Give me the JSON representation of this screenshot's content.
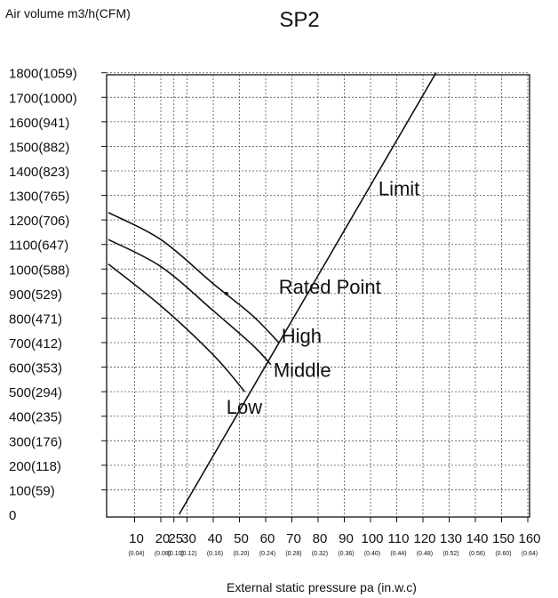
{
  "chart_data": {
    "type": "line",
    "title": "SP2",
    "ylabel": "Air volume m3/h(CFM)",
    "xlabel": "External static pressure pa  (in.w.c)",
    "y_ticks": [
      {
        "value": 0,
        "label": "0"
      },
      {
        "value": 100,
        "label": "100(59)"
      },
      {
        "value": 200,
        "label": "200(118)"
      },
      {
        "value": 300,
        "label": "300(176)"
      },
      {
        "value": 400,
        "label": "400(235)"
      },
      {
        "value": 500,
        "label": "500(294)"
      },
      {
        "value": 600,
        "label": "600(353)"
      },
      {
        "value": 700,
        "label": "700(412)"
      },
      {
        "value": 800,
        "label": "800(471)"
      },
      {
        "value": 900,
        "label": "900(529)"
      },
      {
        "value": 1000,
        "label": "1000(588)"
      },
      {
        "value": 1100,
        "label": "1100(647)"
      },
      {
        "value": 1200,
        "label": "1200(706)"
      },
      {
        "value": 1300,
        "label": "1300(765)"
      },
      {
        "value": 1400,
        "label": "1400(823)"
      },
      {
        "value": 1500,
        "label": "1500(882)"
      },
      {
        "value": 1600,
        "label": "1600(941)"
      },
      {
        "value": 1700,
        "label": "1700(1000)"
      },
      {
        "value": 1800,
        "label": "1800(1059)"
      }
    ],
    "x_ticks": [
      {
        "value": 10,
        "label": "10",
        "sub": "(0.04)"
      },
      {
        "value": 20,
        "label": "20",
        "sub": "(0.08)"
      },
      {
        "value": 25,
        "label": "25",
        "sub": "(0.10)"
      },
      {
        "value": 30,
        "label": "30",
        "sub": "(0.12)"
      },
      {
        "value": 40,
        "label": "40",
        "sub": "(0.16)"
      },
      {
        "value": 50,
        "label": "50",
        "sub": "(0.20)"
      },
      {
        "value": 60,
        "label": "60",
        "sub": "(0.24)"
      },
      {
        "value": 70,
        "label": "70",
        "sub": "(0.28)"
      },
      {
        "value": 80,
        "label": "80",
        "sub": "(0.32)"
      },
      {
        "value": 90,
        "label": "90",
        "sub": "(0.36)"
      },
      {
        "value": 100,
        "label": "100",
        "sub": "(0.40)"
      },
      {
        "value": 110,
        "label": "110",
        "sub": "(0.44)"
      },
      {
        "value": 120,
        "label": "120",
        "sub": "(0.48)"
      },
      {
        "value": 130,
        "label": "130",
        "sub": "(0.52)"
      },
      {
        "value": 140,
        "label": "140",
        "sub": "(0.56)"
      },
      {
        "value": 150,
        "label": "150",
        "sub": "(0.60)"
      },
      {
        "value": 160,
        "label": "160",
        "sub": "(0.64)"
      }
    ],
    "xlim": [
      0,
      160
    ],
    "ylim": [
      0,
      1800
    ],
    "grid": true,
    "series": [
      {
        "name": "High",
        "x": [
          0,
          20,
          40,
          55,
          65
        ],
        "y": [
          1230,
          1120,
          940,
          810,
          700
        ]
      },
      {
        "name": "Middle",
        "x": [
          0,
          20,
          40,
          55,
          62
        ],
        "y": [
          1120,
          1010,
          830,
          690,
          610
        ]
      },
      {
        "name": "Low",
        "x": [
          0,
          20,
          40,
          52
        ],
        "y": [
          1020,
          850,
          650,
          500
        ]
      },
      {
        "name": "Limit",
        "x": [
          27,
          125
        ],
        "y": [
          0,
          1800
        ]
      }
    ],
    "annotations": [
      {
        "text": "Rated Point",
        "x": 65,
        "y": 900
      },
      {
        "text": "High",
        "x": 66,
        "y": 700
      },
      {
        "text": "Middle",
        "x": 63,
        "y": 560
      },
      {
        "text": "Low",
        "x": 45,
        "y": 410
      },
      {
        "text": "Limit",
        "x": 103,
        "y": 1300
      }
    ]
  }
}
